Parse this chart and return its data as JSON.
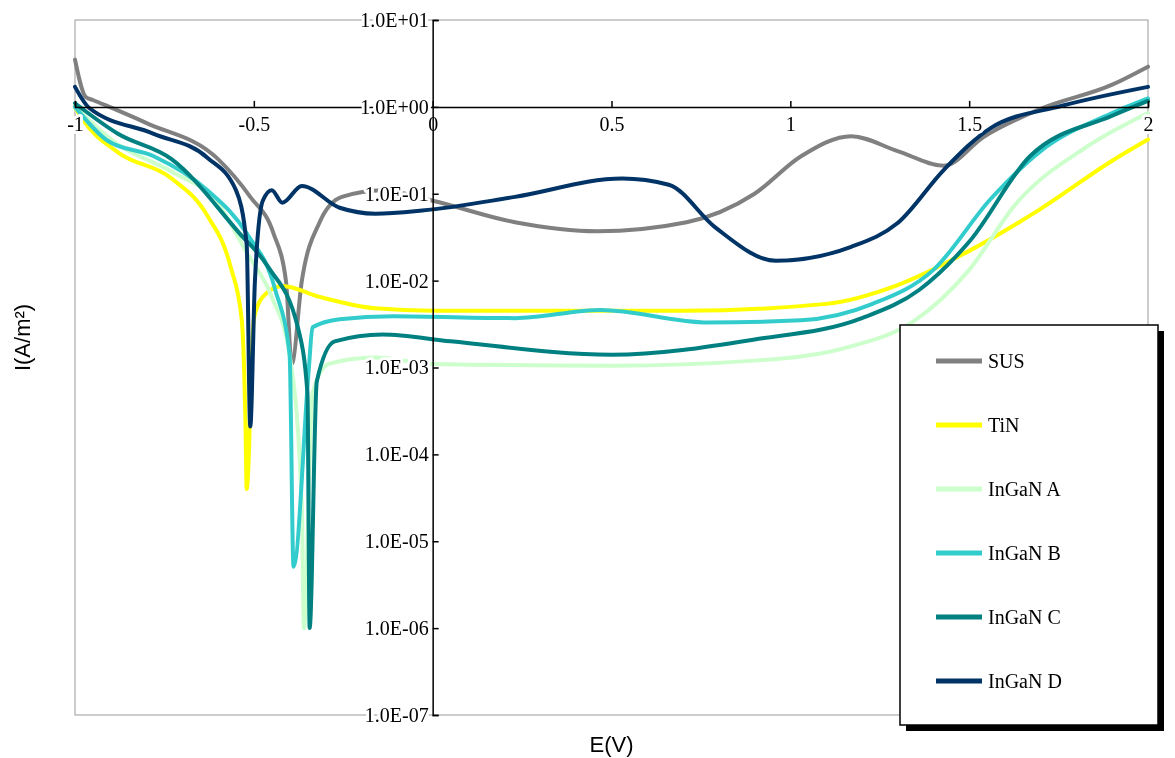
{
  "chart_data": {
    "type": "line",
    "xlabel": "E(V)",
    "ylabel": "I(A/m²)",
    "log": "y",
    "xlim": [
      -1,
      2
    ],
    "xticks": [
      -1,
      -0.5,
      0,
      0.5,
      1,
      1.5,
      2
    ],
    "ylim": [
      1e-07,
      10
    ],
    "yticks": [
      {
        "value": 10,
        "label": "1.0E+01"
      },
      {
        "value": 1,
        "label": "1.0E+00"
      },
      {
        "value": 0.1,
        "label": "1.0E-01"
      },
      {
        "value": 0.01,
        "label": "1.0E-02"
      },
      {
        "value": 0.001,
        "label": "1.0E-03"
      },
      {
        "value": 0.0001,
        "label": "1.0E-04"
      },
      {
        "value": 1e-05,
        "label": "1.0E-05"
      },
      {
        "value": 1e-06,
        "label": "1.0E-06"
      },
      {
        "value": 1e-07,
        "label": "1.0E-07"
      }
    ],
    "grid": false,
    "legend": "bottom right",
    "marker": "none",
    "line_style": "solid",
    "series": [
      {
        "name": "SUS",
        "color": "#808080",
        "x": [
          -1,
          -0.97,
          -0.95,
          -0.8,
          -0.6,
          -0.51,
          -0.445,
          -0.41,
          -0.394,
          -0.366,
          -0.316,
          -0.254,
          -0.14,
          0,
          0.23,
          0.46,
          0.71,
          0.9,
          1.03,
          1.17,
          1.3,
          1.43,
          1.54,
          1.7,
          1.9,
          2
        ],
        "values": [
          3.5,
          1.3,
          1.2,
          0.65,
          0.25,
          0.092,
          0.035,
          0.0098,
          0.0011,
          0.0098,
          0.047,
          0.092,
          0.11,
          0.083,
          0.047,
          0.037,
          0.047,
          0.1,
          0.27,
          0.46,
          0.31,
          0.21,
          0.45,
          0.95,
          1.8,
          2.9
        ]
      },
      {
        "name": "TiN",
        "color": "#ffff00",
        "x": [
          -1,
          -0.98,
          -0.88,
          -0.73,
          -0.63,
          -0.565,
          -0.534,
          -0.523,
          -0.52,
          -0.5,
          -0.475,
          -0.42,
          -0.316,
          -0.16,
          0,
          0.7,
          1.1,
          1.3,
          1.5,
          1.7,
          1.9,
          2
        ],
        "values": [
          1,
          0.73,
          0.3,
          0.15,
          0.056,
          0.0144,
          0.0036,
          0.00019,
          4e-05,
          0.0036,
          0.0065,
          0.0087,
          0.0065,
          0.0048,
          0.0045,
          0.0045,
          0.0054,
          0.0089,
          0.022,
          0.067,
          0.24,
          0.42
        ]
      },
      {
        "name": "InGaN A",
        "color": "#ccffcc",
        "x": [
          -1,
          -0.88,
          -0.73,
          -0.6,
          -0.52,
          -0.45,
          -0.4,
          -0.366,
          -0.36,
          -0.336,
          -0.29,
          -0.16,
          0,
          0.5,
          0.9,
          1.17,
          1.34,
          1.5,
          1.63,
          1.83,
          2
        ],
        "values": [
          1,
          0.37,
          0.18,
          0.077,
          0.021,
          0.0065,
          0.0014,
          2.7e-05,
          1e-06,
          0.0005,
          0.0011,
          0.0013,
          0.0011,
          0.00105,
          0.0012,
          0.00175,
          0.0033,
          0.0133,
          0.076,
          0.35,
          0.85
        ]
      },
      {
        "name": "InGaN B",
        "color": "#33cccc",
        "x": [
          -1,
          -0.91,
          -0.78,
          -0.63,
          -0.52,
          -0.44,
          -0.4,
          -0.389,
          -0.346,
          -0.336,
          -0.26,
          -0.11,
          0.23,
          0.47,
          0.77,
          1.03,
          1.23,
          1.4,
          1.56,
          1.7,
          1.9,
          2
        ],
        "values": [
          1,
          0.41,
          0.27,
          0.11,
          0.035,
          0.0078,
          0.0014,
          5.1e-06,
          0.001,
          0.0029,
          0.0036,
          0.0039,
          0.0037,
          0.0046,
          0.0033,
          0.0035,
          0.0054,
          0.0133,
          0.087,
          0.31,
          0.85,
          1.25
        ]
      },
      {
        "name": "InGaN C",
        "color": "#008080",
        "x": [
          -1,
          -0.88,
          -0.73,
          -0.54,
          -0.46,
          -0.377,
          -0.35,
          -0.344,
          -0.324,
          -0.274,
          -0.14,
          0.05,
          0.5,
          0.9,
          1.2,
          1.36,
          1.5,
          1.67,
          1.9,
          2
        ],
        "values": [
          1.1,
          0.49,
          0.25,
          0.035,
          0.0144,
          0.0029,
          0.0005,
          1e-06,
          0.00069,
          0.002,
          0.0024,
          0.002,
          0.0014,
          0.0021,
          0.0037,
          0.0078,
          0.028,
          0.27,
          0.79,
          1.17
        ]
      },
      {
        "name": "InGaN D",
        "color": "#003366",
        "x": [
          -1,
          -0.96,
          -0.78,
          -0.63,
          -0.55,
          -0.52,
          -0.51,
          -0.497,
          -0.475,
          -0.45,
          -0.42,
          -0.366,
          -0.26,
          -0.16,
          -0.03,
          0.23,
          0.53,
          0.66,
          0.79,
          0.96,
          1.17,
          1.3,
          1.43,
          1.56,
          1.76,
          2
        ],
        "values": [
          1.7,
          0.97,
          0.49,
          0.26,
          0.11,
          0.026,
          0.00021,
          0.0098,
          0.083,
          0.11,
          0.079,
          0.123,
          0.069,
          0.059,
          0.064,
          0.092,
          0.15,
          0.127,
          0.041,
          0.0169,
          0.0245,
          0.046,
          0.19,
          0.57,
          1.03,
          1.7
        ]
      }
    ]
  }
}
